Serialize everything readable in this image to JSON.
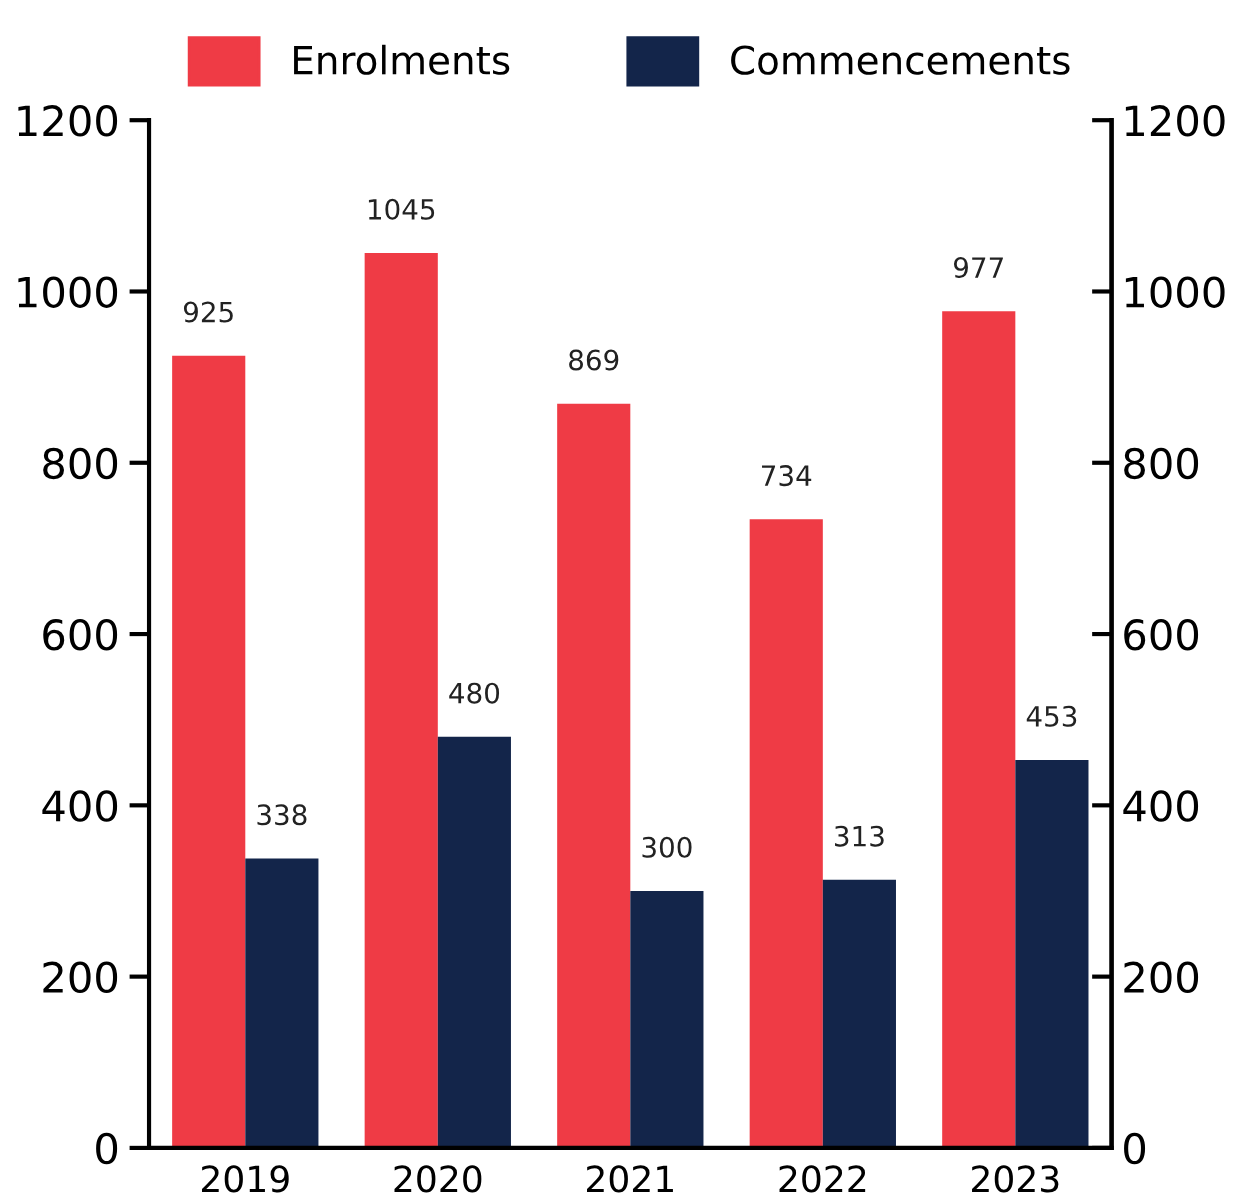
{
  "chart_data": {
    "type": "bar",
    "categories": [
      "2019",
      "2020",
      "2021",
      "2022",
      "2023"
    ],
    "series": [
      {
        "name": "Enrolments",
        "color": "#ef3b45",
        "values": [
          925,
          1045,
          869,
          734,
          977
        ]
      },
      {
        "name": "Commencements",
        "color": "#13254a",
        "values": [
          338,
          480,
          300,
          313,
          453
        ]
      }
    ],
    "ylim": [
      0,
      1200
    ],
    "yticks": [
      0,
      200,
      400,
      600,
      800,
      1000,
      1200
    ],
    "y2lim": [
      0,
      1200
    ],
    "y2ticks": [
      0,
      200,
      400,
      600,
      800,
      1000,
      1200
    ],
    "data_labels": true,
    "legend": "top",
    "grid": false
  }
}
